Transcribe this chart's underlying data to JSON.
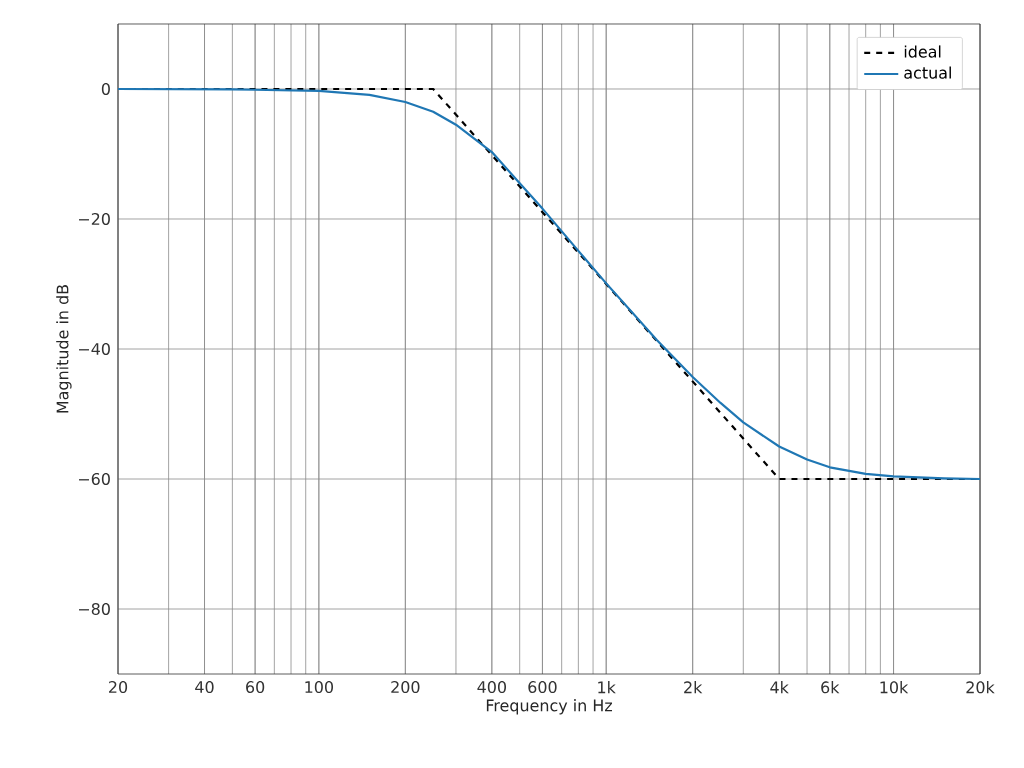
{
  "chart_data": {
    "type": "line",
    "xlabel": "Frequency in Hz",
    "ylabel": "Magnitude in dB",
    "log": "x",
    "grid": true,
    "legend": "top right",
    "xlim": [
      20,
      20000
    ],
    "ylim": [
      -90,
      10
    ],
    "xticks": [
      20,
      40,
      60,
      100,
      200,
      400,
      600,
      {
        "value": 1000,
        "label": "1k"
      },
      {
        "value": 2000,
        "label": "2k"
      },
      {
        "value": 4000,
        "label": "4k"
      },
      {
        "value": 6000,
        "label": "6k"
      },
      {
        "value": 10000,
        "label": "10k"
      },
      {
        "value": 20000,
        "label": "20k"
      }
    ],
    "yticks": [
      0,
      {
        "value": -20,
        "label": "−20"
      },
      {
        "value": -40,
        "label": "−40"
      },
      {
        "value": -60,
        "label": "−60"
      },
      {
        "value": -80,
        "label": "−80"
      }
    ],
    "series": [
      {
        "name": "ideal",
        "color": "#000000",
        "line_style": "dashed",
        "x": [
          20,
          250,
          4000,
          20000
        ],
        "values": [
          0,
          0,
          -60,
          -60
        ]
      },
      {
        "name": "actual",
        "color": "#1f77b4",
        "line_style": "solid",
        "x": [
          20,
          50,
          100,
          150,
          200,
          250,
          300,
          400,
          500,
          600,
          800,
          1000,
          1500,
          2000,
          2500,
          3000,
          4000,
          5000,
          6000,
          8000,
          10000,
          15000,
          20000
        ],
        "values": [
          0,
          -0.05,
          -0.3,
          -0.9,
          -2.0,
          -3.5,
          -5.5,
          -9.7,
          -14.5,
          -18.4,
          -24.9,
          -29.9,
          -38.6,
          -44.3,
          -48.3,
          -51.3,
          -55.0,
          -57.0,
          -58.2,
          -59.2,
          -59.6,
          -59.9,
          -60
        ]
      }
    ]
  }
}
